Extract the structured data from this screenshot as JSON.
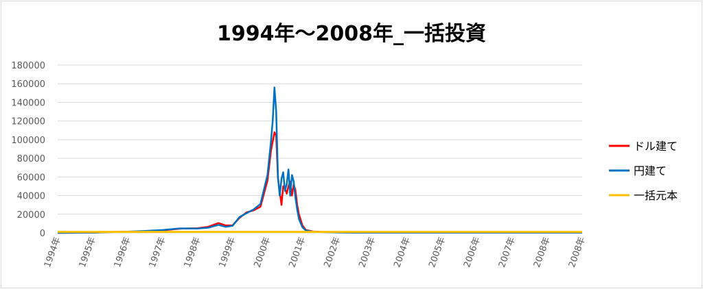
{
  "chart_data": {
    "type": "line",
    "title": "1994年～2008年_一括投資",
    "xlabel": "",
    "ylabel": "",
    "ylim": [
      0,
      180000
    ],
    "yticks": [
      "0",
      "20000",
      "40000",
      "60000",
      "80000",
      "100000",
      "120000",
      "140000",
      "160000",
      "180000"
    ],
    "grid": true,
    "legend_position": "right",
    "categories": [
      "1994年",
      "1995年",
      "1996年",
      "1997年",
      "1998年",
      "1999年",
      "2000年",
      "2001年",
      "2002年",
      "2003年",
      "2004年",
      "2005年",
      "2006年",
      "2007年",
      "2008年",
      "2008年"
    ],
    "series": [
      {
        "name": "ドル建て",
        "color": "#ff0000",
        "x": [
          1994.0,
          1995.0,
          1995.5,
          1996.0,
          1996.5,
          1997.0,
          1997.5,
          1998.0,
          1998.3,
          1998.6,
          1998.8,
          1999.0,
          1999.2,
          1999.4,
          1999.6,
          1999.8,
          2000.0,
          2000.1,
          2000.2,
          2000.25,
          2000.3,
          2000.35,
          2000.4,
          2000.45,
          2000.5,
          2000.55,
          2000.6,
          2000.65,
          2000.7,
          2000.75,
          2000.8,
          2000.85,
          2000.9,
          2001.0,
          2001.1,
          2001.3,
          2001.6,
          2002.0,
          2002.5,
          2008.0,
          2009.0
        ],
        "y": [
          0,
          200,
          800,
          1200,
          1800,
          2600,
          4500,
          5000,
          6500,
          10500,
          8000,
          8000,
          16000,
          22000,
          24000,
          28000,
          56000,
          88000,
          108000,
          104000,
          58000,
          45000,
          30000,
          50000,
          48000,
          42000,
          50000,
          55000,
          40000,
          52000,
          46000,
          30000,
          20000,
          8000,
          3000,
          1500,
          900,
          500,
          200,
          200,
          200
        ]
      },
      {
        "name": "円建て",
        "color": "#0070c0",
        "x": [
          1994.0,
          1995.0,
          1995.5,
          1996.0,
          1996.5,
          1997.0,
          1997.5,
          1998.0,
          1998.3,
          1998.6,
          1998.8,
          1999.0,
          1999.2,
          1999.4,
          1999.6,
          1999.8,
          2000.0,
          2000.1,
          2000.15,
          2000.2,
          2000.25,
          2000.3,
          2000.35,
          2000.4,
          2000.45,
          2000.5,
          2000.55,
          2000.6,
          2000.65,
          2000.7,
          2000.75,
          2000.8,
          2000.85,
          2000.9,
          2001.0,
          2001.1,
          2001.3,
          2001.6,
          2002.0,
          2002.5,
          2008.0,
          2009.0
        ],
        "y": [
          0,
          300,
          900,
          1300,
          2000,
          3000,
          4800,
          4600,
          5500,
          8500,
          6500,
          7500,
          17000,
          21000,
          25000,
          31000,
          62000,
          98000,
          120000,
          156000,
          130000,
          60000,
          40000,
          58000,
          65000,
          45000,
          52000,
          68000,
          40000,
          62000,
          55000,
          38000,
          25000,
          15000,
          6000,
          2500,
          1200,
          800,
          400,
          200,
          200,
          200
        ]
      },
      {
        "name": "一括元本",
        "color": "#ffc000",
        "x": [
          1994.0,
          2009.0
        ],
        "y": [
          1000,
          1000
        ]
      }
    ]
  }
}
